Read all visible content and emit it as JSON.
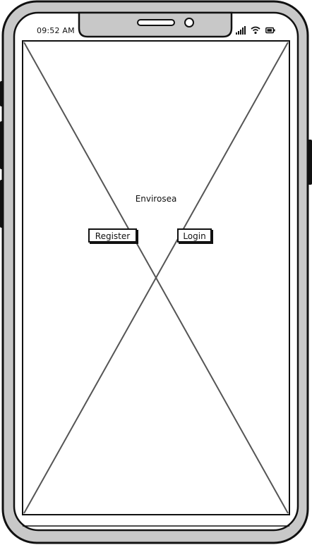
{
  "status_bar": {
    "time": "09:52 AM",
    "icons": [
      "signal-icon",
      "wifi-icon",
      "battery-icon"
    ]
  },
  "app": {
    "title": "Envirosea"
  },
  "actions": {
    "register_label": "Register",
    "login_label": "Login"
  },
  "colors": {
    "outline": "#111111",
    "frame_fill": "#c8c8c8",
    "screen": "#ffffff",
    "placeholder_lines": "#555555"
  }
}
